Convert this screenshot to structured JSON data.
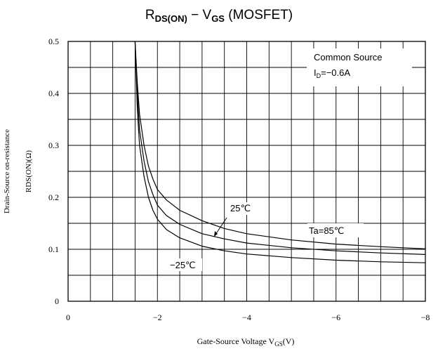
{
  "chart_data": {
    "type": "line",
    "title": {
      "r": "R",
      "r_sub": "DS(ON)",
      "sep": " − ",
      "v": "V",
      "v_sub": "GS",
      "suffix": " (MOSFET)"
    },
    "xlabel": {
      "main": "Gate-Source Voltage  V",
      "sub": "GS",
      "unit": "(V)"
    },
    "ylabel": {
      "line1": "Drain-Source on-resistance",
      "line2": "RDS(ON)(Ω)"
    },
    "xlim": [
      0,
      -8
    ],
    "ylim": [
      0,
      0.5
    ],
    "x_ticks": [
      0,
      -2,
      -4,
      -6,
      -8
    ],
    "x_tick_labels": [
      "0",
      "−2",
      "−4",
      "−6",
      "−8"
    ],
    "y_ticks": [
      0,
      0.1,
      0.2,
      0.3,
      0.4,
      0.5
    ],
    "y_tick_labels": [
      "0",
      "0.1",
      "0.2",
      "0.3",
      "0.4",
      "0.5"
    ],
    "grid": true,
    "conditions": {
      "line1": "Common Source",
      "line2_main": "I",
      "line2_sub": "D",
      "line2_rest": "=−0.6A"
    },
    "series": [
      {
        "name": "Ta=85℃",
        "x": [
          -1.5,
          -1.55,
          -1.6,
          -1.7,
          -1.8,
          -1.9,
          -2.0,
          -2.2,
          -2.5,
          -3.0,
          -3.5,
          -4.0,
          -5.0,
          -6.0,
          -7.0,
          -8.0
        ],
        "y": [
          0.5,
          0.42,
          0.36,
          0.3,
          0.26,
          0.235,
          0.215,
          0.195,
          0.175,
          0.155,
          0.14,
          0.13,
          0.118,
          0.11,
          0.105,
          0.101
        ]
      },
      {
        "name": "25℃",
        "x": [
          -1.5,
          -1.55,
          -1.6,
          -1.7,
          -1.8,
          -1.9,
          -2.0,
          -2.2,
          -2.5,
          -3.0,
          -3.5,
          -4.0,
          -5.0,
          -6.0,
          -7.0,
          -8.0
        ],
        "y": [
          0.5,
          0.4,
          0.33,
          0.27,
          0.23,
          0.205,
          0.185,
          0.165,
          0.148,
          0.13,
          0.12,
          0.112,
          0.103,
          0.097,
          0.093,
          0.09
        ]
      },
      {
        "name": "−25℃",
        "x": [
          -1.5,
          -1.55,
          -1.6,
          -1.7,
          -1.8,
          -1.9,
          -2.0,
          -2.2,
          -2.5,
          -3.0,
          -3.5,
          -4.0,
          -5.0,
          -6.0,
          -7.0,
          -8.0
        ],
        "y": [
          0.5,
          0.37,
          0.3,
          0.24,
          0.2,
          0.175,
          0.158,
          0.138,
          0.122,
          0.106,
          0.097,
          0.091,
          0.084,
          0.079,
          0.076,
          0.074
        ]
      }
    ]
  }
}
